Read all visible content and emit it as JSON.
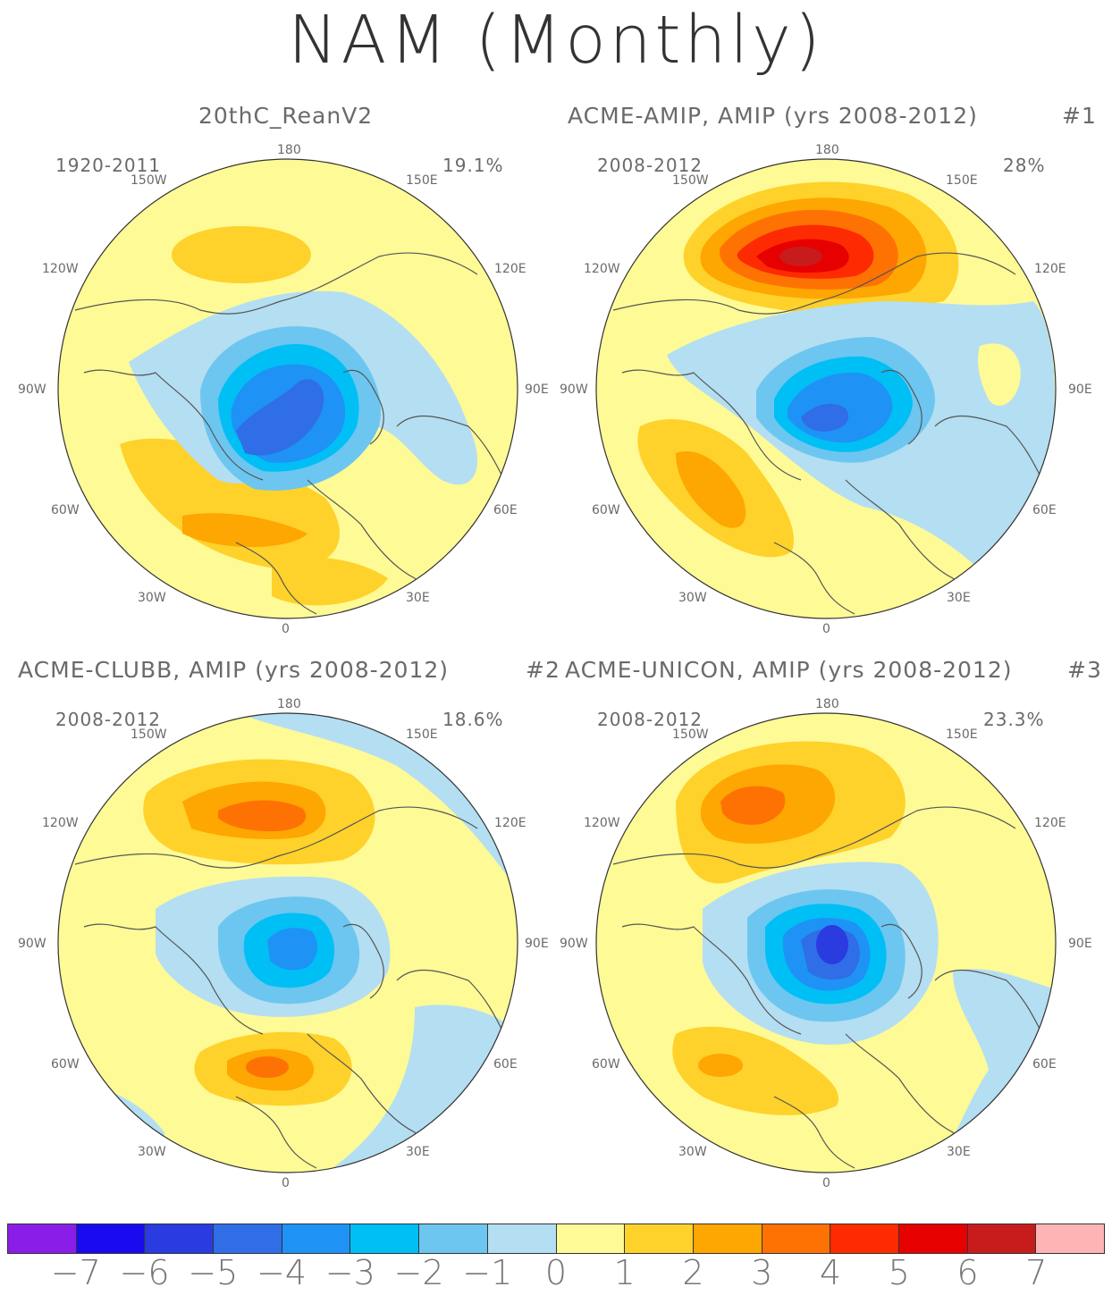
{
  "title": "NAM (Monthly)",
  "longitude_labels": {
    "north": "180",
    "south": "0",
    "nw": "150W",
    "ne": "150E",
    "wnw": "120W",
    "ene": "120E",
    "west": "90W",
    "east": "90E",
    "wsw": "60W",
    "ese": "60E",
    "sw": "30W",
    "se": "30E"
  },
  "panels": [
    {
      "id": "p1",
      "title": "20thC_ReanV2",
      "number": "",
      "years": "1920-2011",
      "variance": "19.1%"
    },
    {
      "id": "p2",
      "title": "ACME-AMIP, AMIP (yrs 2008-2012)",
      "number": "#1",
      "years": "2008-2012",
      "variance": "28%"
    },
    {
      "id": "p3",
      "title": "ACME-CLUBB, AMIP (yrs 2008-2012)",
      "number": "#2",
      "years": "2008-2012",
      "variance": "18.6%"
    },
    {
      "id": "p4",
      "title": "ACME-UNICON, AMIP (yrs 2008-2012)",
      "number": "#3",
      "years": "2008-2012",
      "variance": "23.3%"
    }
  ],
  "colorbar": {
    "colors": [
      "#8a1ee8",
      "#1a0af0",
      "#2a3be0",
      "#2f6ee6",
      "#1e93f5",
      "#00bff5",
      "#6cc6f0",
      "#b4def2",
      "#fefa96",
      "#fed22a",
      "#fea602",
      "#fe7203",
      "#fe2a02",
      "#e60000",
      "#c81c1c",
      "#feb4b4"
    ],
    "labels": [
      "-7",
      "-6",
      "-5",
      "-4",
      "-3",
      "-2",
      "-1",
      "0",
      "1",
      "2",
      "3",
      "4",
      "5",
      "6",
      "7"
    ]
  },
  "colors": {
    "background": "#fefa96",
    "border": "#333333",
    "coast": "#555555"
  }
}
